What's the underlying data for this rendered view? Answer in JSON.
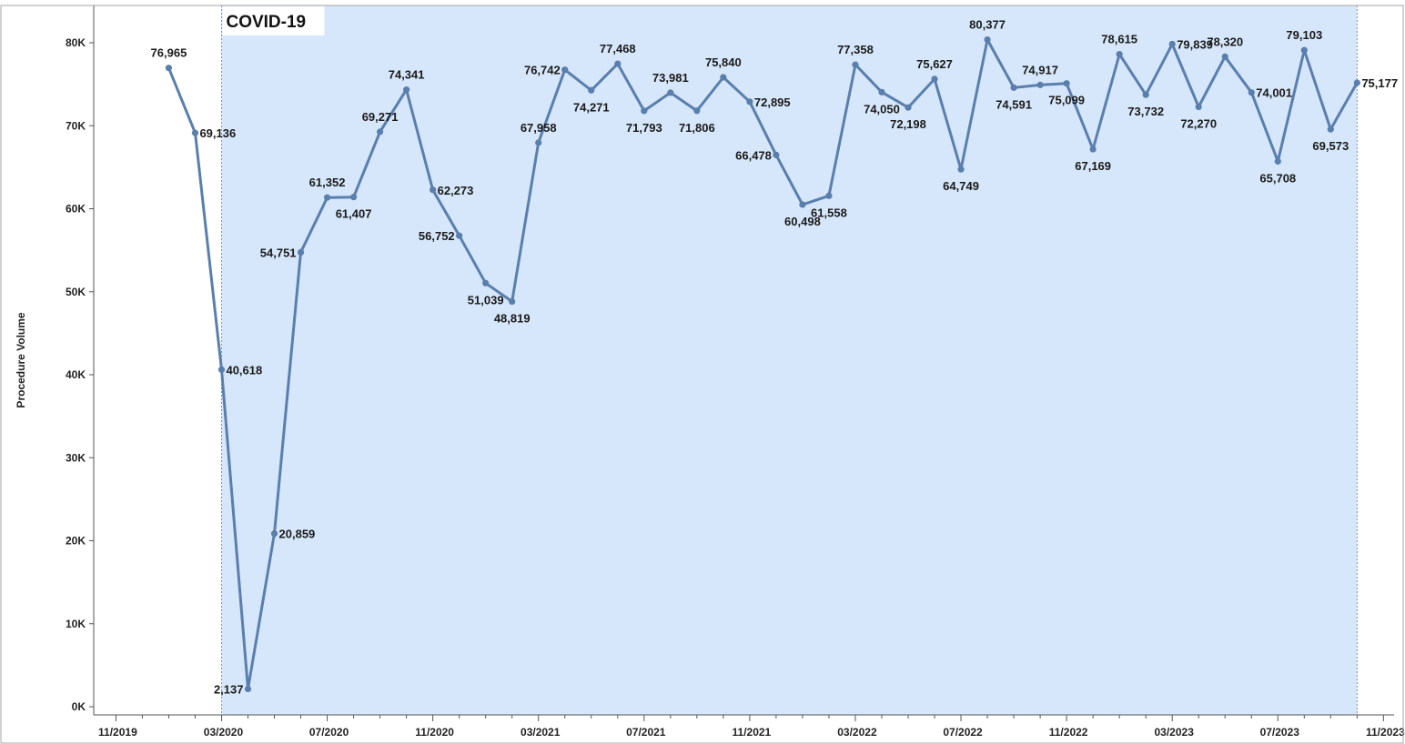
{
  "chart_data": {
    "type": "line",
    "title": "",
    "xlabel": "",
    "ylabel": "Procedure Volume",
    "ylim": [
      0,
      86000
    ],
    "y_ticks": [
      0,
      10000,
      20000,
      30000,
      40000,
      50000,
      60000,
      70000,
      80000
    ],
    "y_tick_labels": [
      "0K",
      "10K",
      "20K",
      "30K",
      "40K",
      "50K",
      "60K",
      "70K",
      "80K"
    ],
    "x_ticks": [
      "2019-11",
      "2020-03",
      "2020-07",
      "2020-11",
      "2021-03",
      "2021-07",
      "2021-11",
      "2022-03",
      "2022-07",
      "2022-11",
      "2023-03",
      "2023-07",
      "2023-11"
    ],
    "x_tick_labels": [
      "11/2019",
      "03/2020",
      "07/2020",
      "11/2020",
      "03/2021",
      "07/2021",
      "11/2021",
      "03/2022",
      "07/2022",
      "11/2022",
      "03/2023",
      "07/2023",
      "11/2023"
    ],
    "xlim": [
      "2019-11",
      "2023-12"
    ],
    "grid": false,
    "line_color": "#5a7fad",
    "shade_color": "#d6e7fb",
    "shaded_region": {
      "label": "COVID-19",
      "start": "2020-03",
      "end": "2023-10"
    },
    "series": [
      {
        "x": [
          "2020-01",
          "2020-02",
          "2020-03",
          "2020-04",
          "2020-05",
          "2020-06",
          "2020-07",
          "2020-08",
          "2020-09",
          "2020-10",
          "2020-11",
          "2020-12",
          "2021-01",
          "2021-02",
          "2021-03",
          "2021-04",
          "2021-05",
          "2021-06",
          "2021-07",
          "2021-08",
          "2021-09",
          "2021-10",
          "2021-11",
          "2021-12",
          "2022-01",
          "2022-02",
          "2022-03",
          "2022-04",
          "2022-05",
          "2022-06",
          "2022-07",
          "2022-08",
          "2022-09",
          "2022-10",
          "2022-11",
          "2022-12",
          "2023-01",
          "2023-02",
          "2023-03",
          "2023-04",
          "2023-05",
          "2023-06",
          "2023-07",
          "2023-08",
          "2023-09",
          "2023-10"
        ],
        "values": [
          76965,
          69136,
          40618,
          2137,
          20859,
          54751,
          61352,
          61407,
          69271,
          74341,
          62273,
          56752,
          51039,
          48819,
          67958,
          76742,
          74271,
          77468,
          71793,
          73981,
          71806,
          75840,
          72895,
          66478,
          60498,
          61558,
          77358,
          74050,
          72198,
          75627,
          64749,
          80377,
          74591,
          74917,
          75099,
          67169,
          78615,
          73732,
          79839,
          72270,
          78320,
          74001,
          65708,
          79103,
          69573,
          75177
        ],
        "labels": [
          "76,965",
          "69,136",
          "40,618",
          "2,137",
          "20,859",
          "54,751",
          "61,352",
          "61,407",
          "69,271",
          "74,341",
          "62,273",
          "56,752",
          "51,039",
          "48,819",
          "67,958",
          "76,742",
          "74,271",
          "77,468",
          "71,793",
          "73,981",
          "71,806",
          "75,840",
          "72,895",
          "66,478",
          "60,498",
          "61,558",
          "77,358",
          "74,050",
          "72,198",
          "75,627",
          "64,749",
          "80,377",
          "74,591",
          "74,917",
          "75,099",
          "67,169",
          "78,615",
          "73,732",
          "79,839",
          "72,270",
          "78,320",
          "74,001",
          "65,708",
          "79,103",
          "69,573",
          "75,177"
        ],
        "label_positions": [
          "above",
          "right",
          "right",
          "left",
          "right",
          "left",
          "above",
          "below",
          "above",
          "above",
          "right",
          "left",
          "below",
          "below",
          "above",
          "left",
          "below",
          "above",
          "below",
          "above",
          "below",
          "above",
          "right",
          "left",
          "below",
          "below",
          "above",
          "below",
          "below",
          "above",
          "below",
          "above",
          "below",
          "above",
          "below",
          "below",
          "above",
          "below",
          "right",
          "below",
          "above",
          "right",
          "below",
          "above",
          "below",
          "right"
        ]
      }
    ]
  }
}
